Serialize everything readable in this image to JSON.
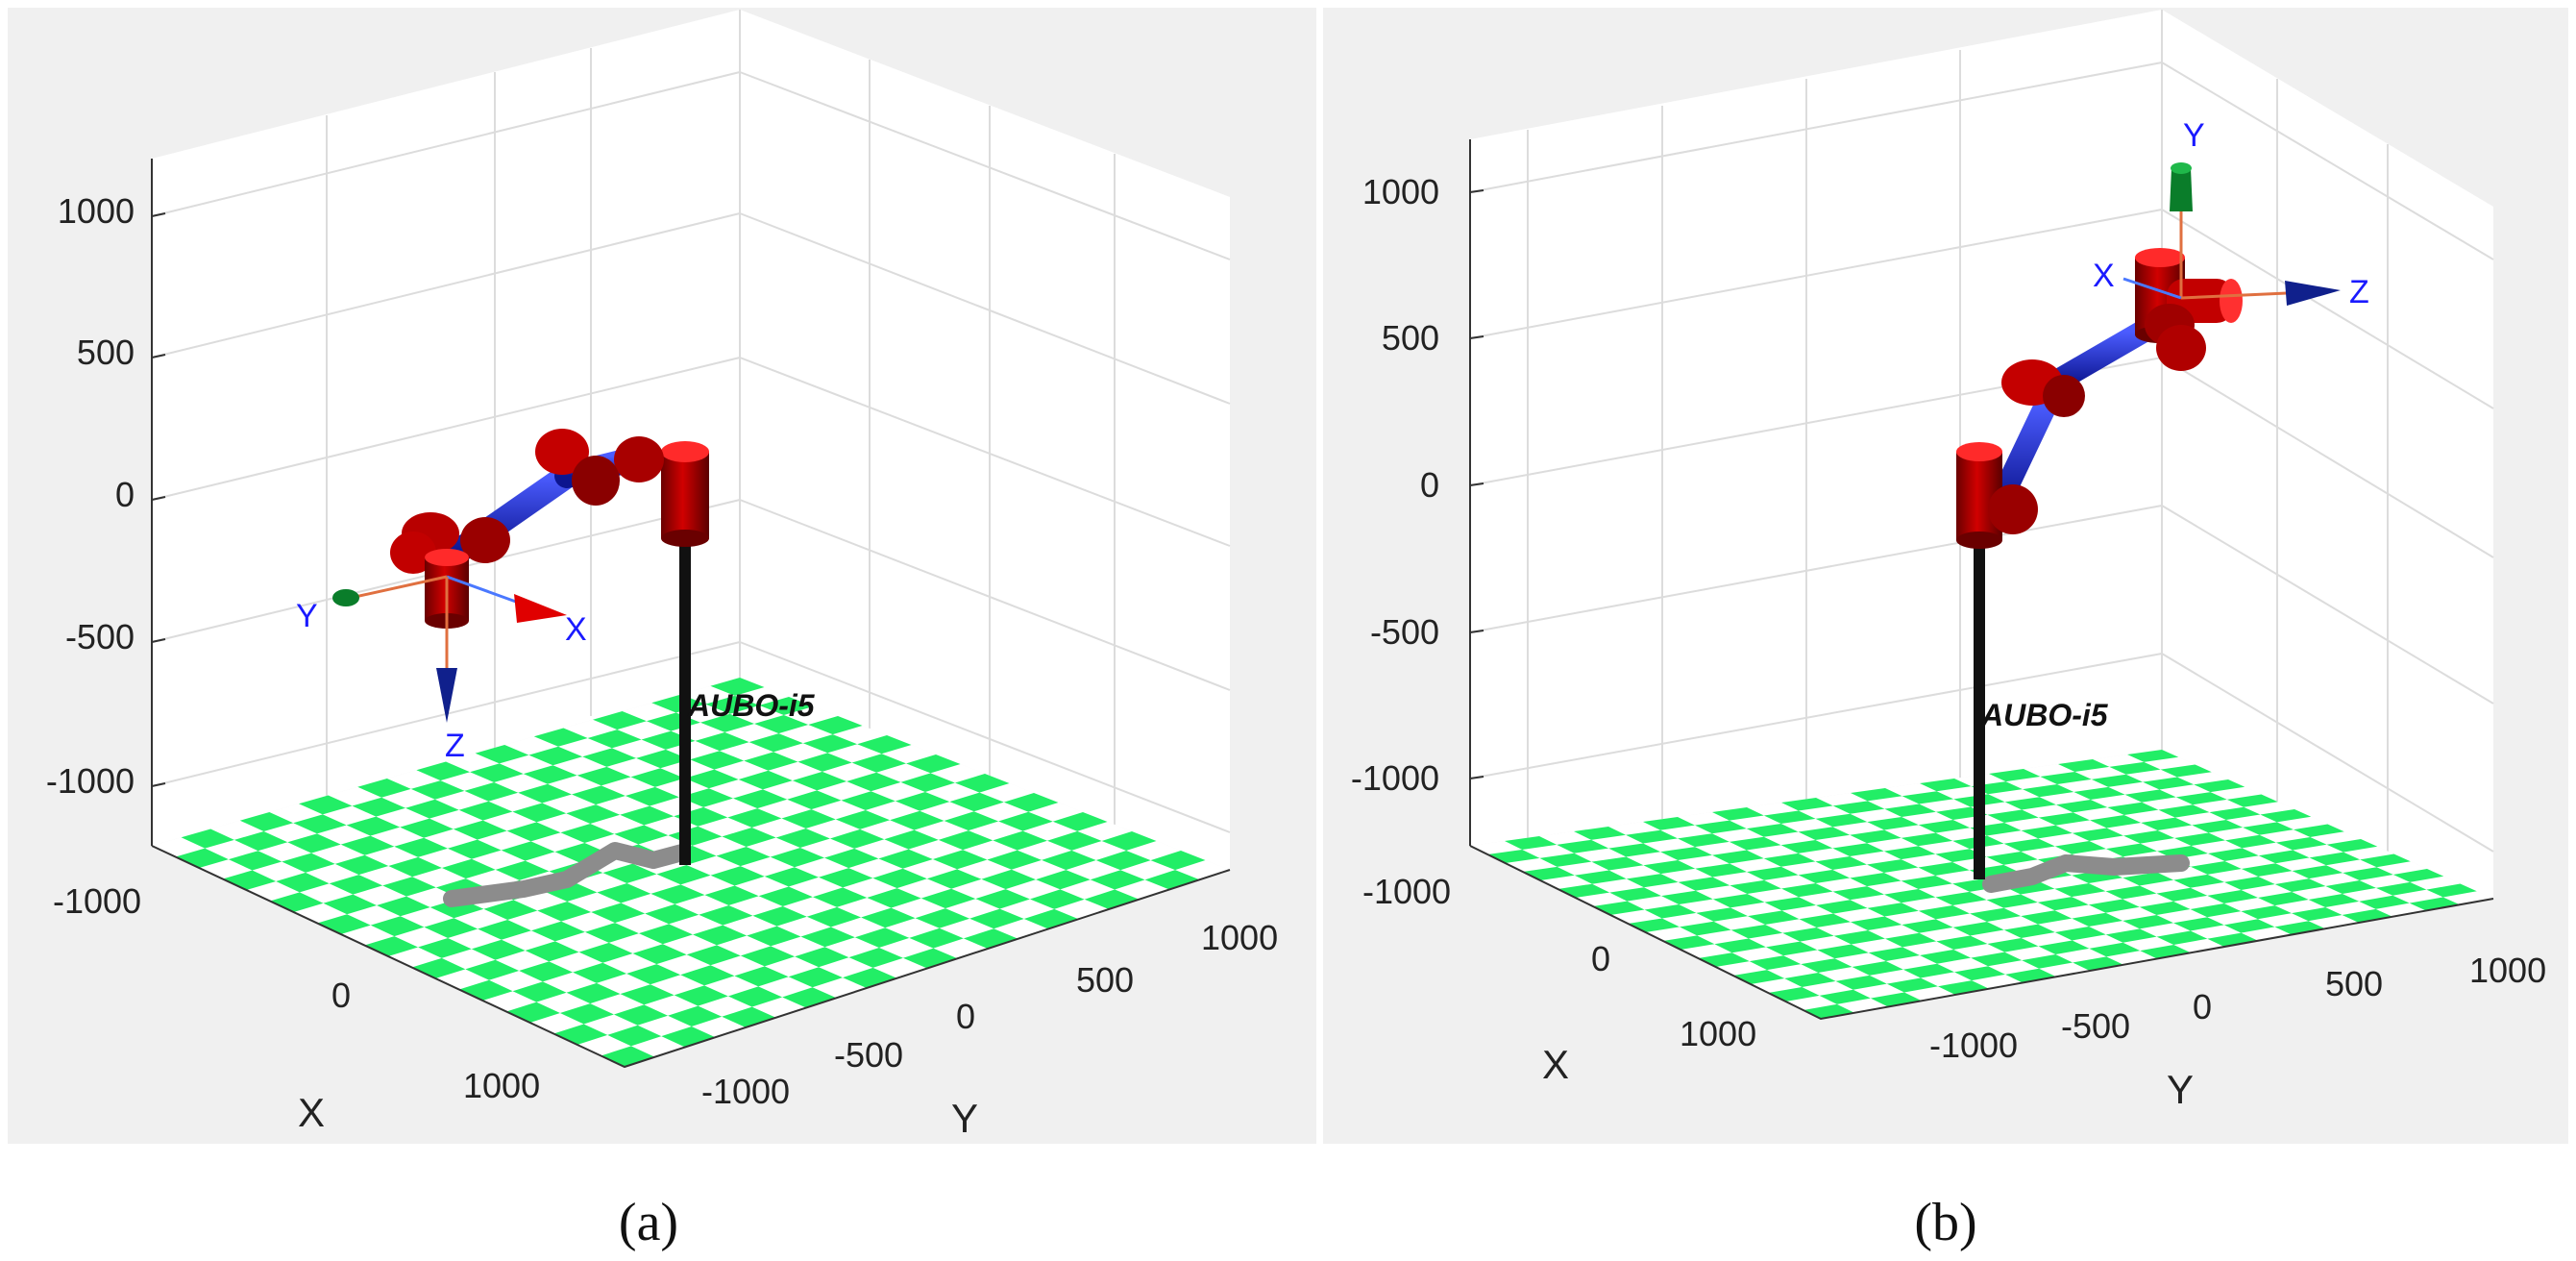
{
  "panels": [
    {
      "id": "a",
      "caption": "(a)",
      "robot_label": "AUBO-i5",
      "z_ticks": [
        "1000",
        "500",
        "0",
        "-500",
        "-1000"
      ],
      "x_ticks": [
        "-1000",
        "0",
        "1000"
      ],
      "y_ticks": [
        "-1000",
        "-500",
        "0",
        "500",
        "1000"
      ],
      "x_axis_label": "X",
      "y_axis_label": "Y",
      "frame_labels": {
        "x": "X",
        "y": "Y",
        "z": "Z"
      }
    },
    {
      "id": "b",
      "caption": "(b)",
      "robot_label": "AUBO-i5",
      "z_ticks": [
        "1000",
        "500",
        "0",
        "-500",
        "-1000"
      ],
      "x_ticks": [
        "-1000",
        "0",
        "1000"
      ],
      "y_ticks": [
        "-1000",
        "-500",
        "0",
        "500",
        "1000"
      ],
      "x_axis_label": "X",
      "y_axis_label": "Y",
      "frame_labels": {
        "x": "X",
        "y": "Y",
        "z": "Z"
      }
    }
  ],
  "colors": {
    "background_panel": "#f0f0f0",
    "axes_face": "#ffffff",
    "grid": "#dcdcdc",
    "floor_green": "#22ee66",
    "floor_light": "#ffffff",
    "joint_red": "#b30000",
    "link_blue": "#1f2fd8",
    "base_black": "#111111",
    "path_gray": "#8c8c8c",
    "frame_label_blue": "#1a1aff",
    "arrow_red": "#e00000",
    "arrow_green": "#0a7d2a",
    "arrow_blue": "#10208c"
  }
}
